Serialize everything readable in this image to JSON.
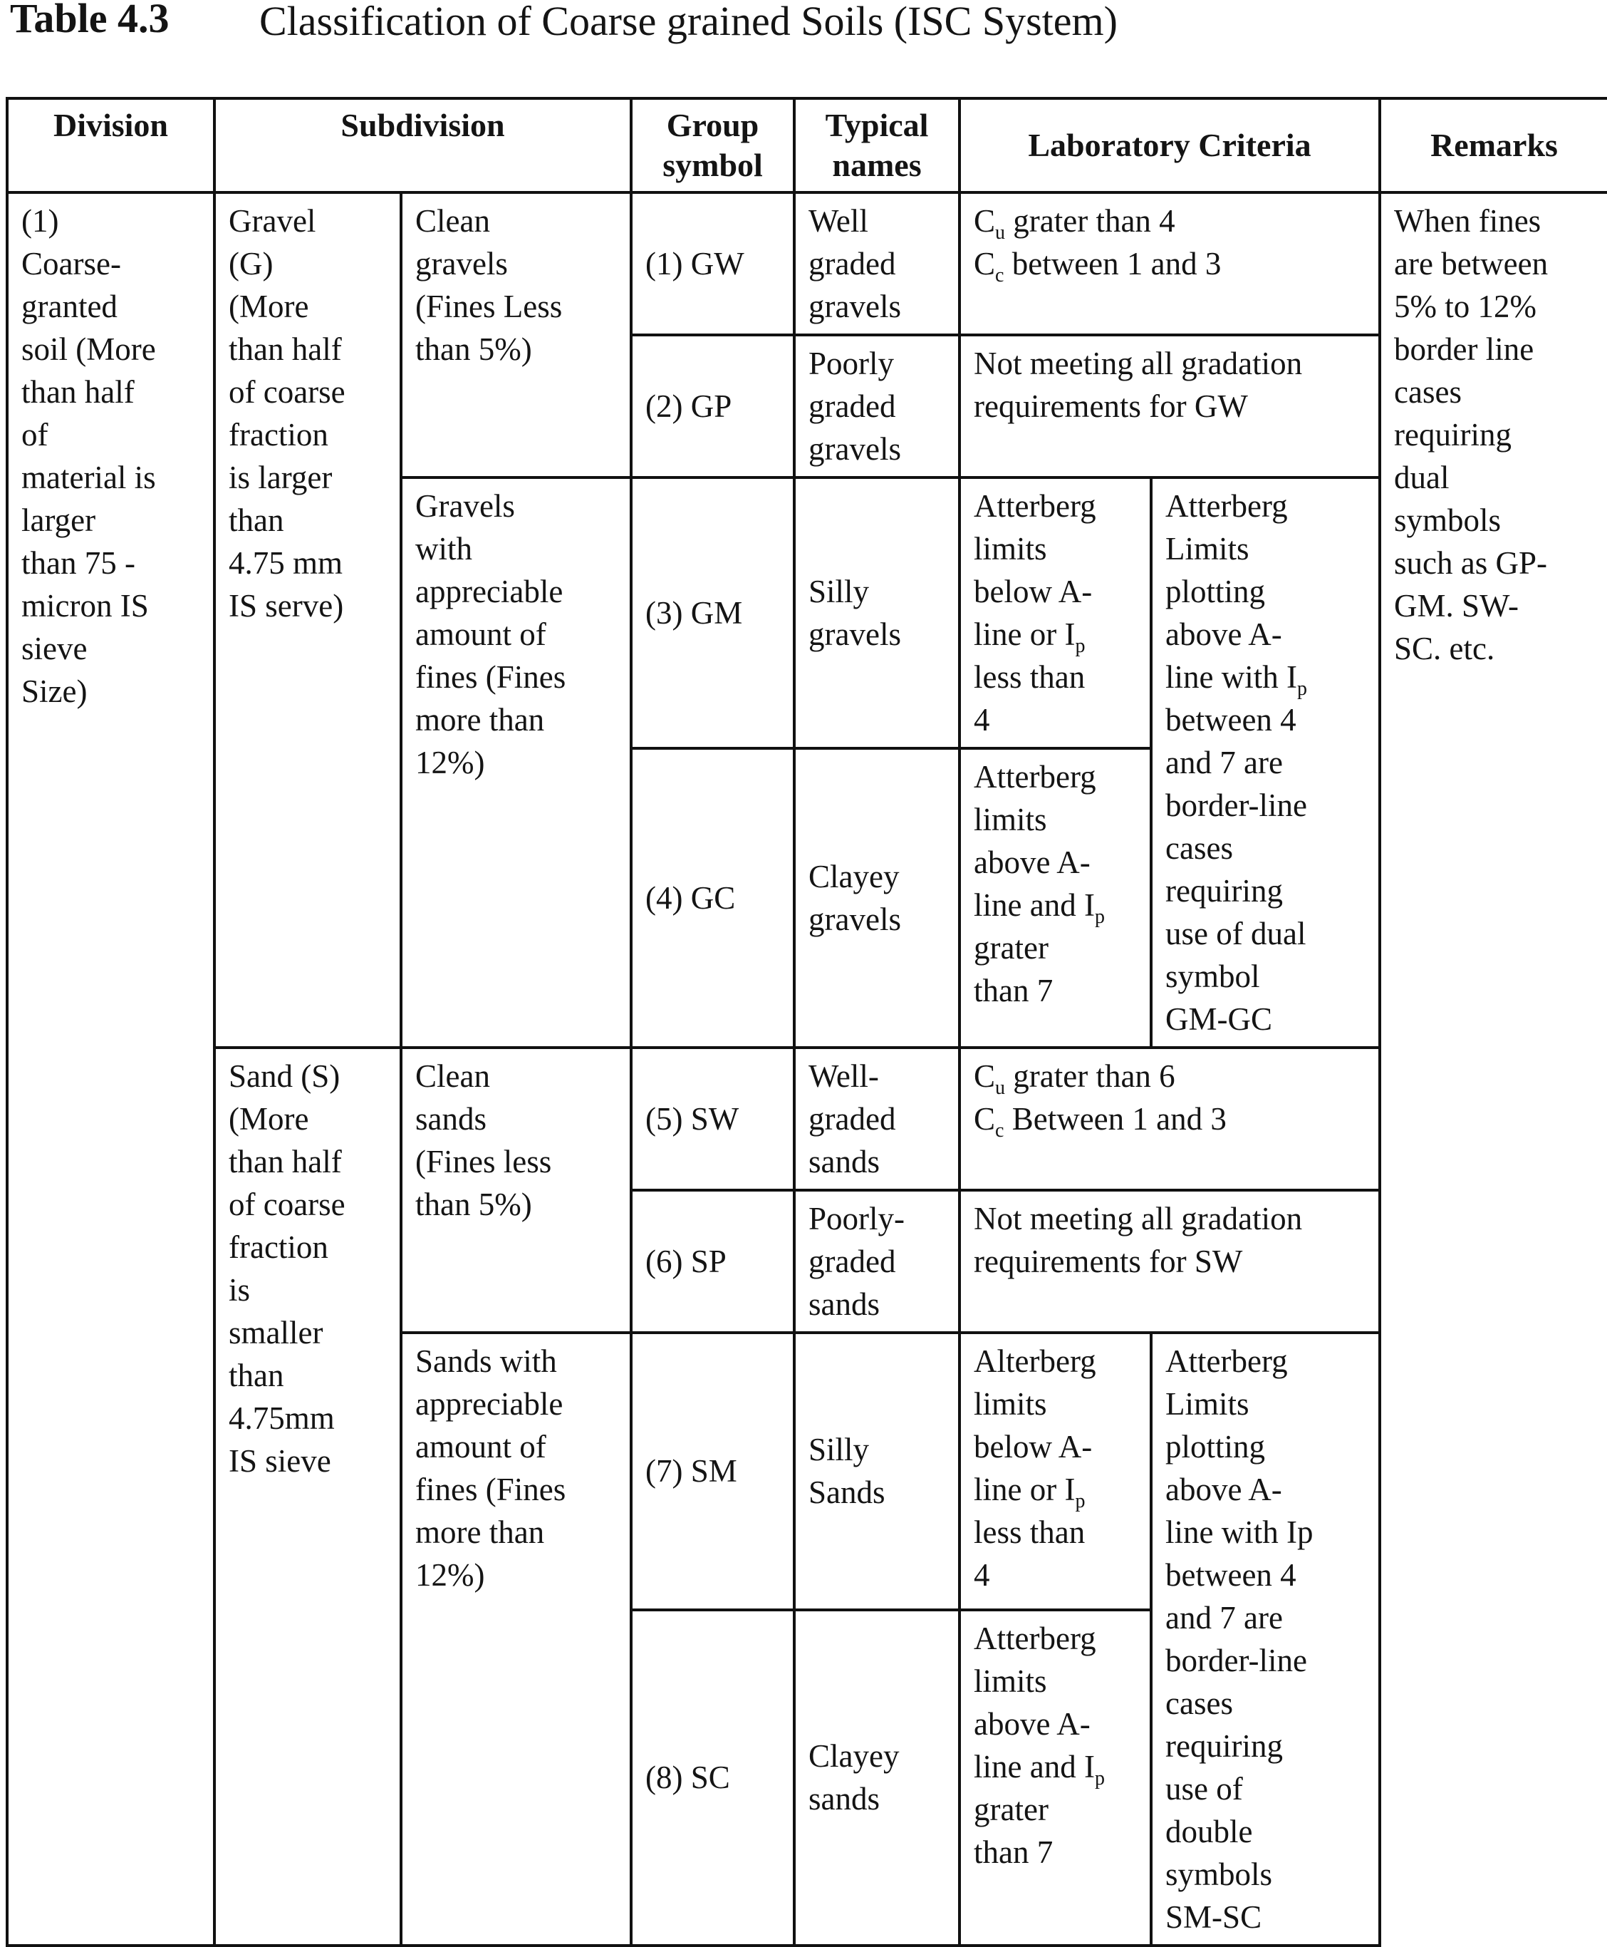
{
  "caption": {
    "number": "Table 4.3",
    "title": "Classification of Coarse grained Soils (ISC System)"
  },
  "headers": {
    "division": "Division",
    "subdivision": "Subdivision",
    "group_symbol": "Group\nsymbol",
    "typical_names": "Typical\nnames",
    "lab_criteria": "Laboratory Criteria",
    "remarks": "Remarks"
  },
  "division": "(1)\nCoarse-\ngranted\nsoil (More\nthan half\nof\nmaterial is\nlarger\nthan 75 -\nmicron IS\nsieve\nSize)",
  "gravel": {
    "subdivision": "Gravel\n(G)\n(More\nthan half\nof coarse\nfraction\nis larger\nthan\n4.75 mm\nIS serve)",
    "clean": "Clean\ngravels\n(Fines Less\nthan 5%)",
    "fines": "Gravels\nwith\nappreciable\namount of\nfines (Fines\nmore than\n12%)"
  },
  "sand": {
    "subdivision": "Sand (S)\n(More\nthan half\nof coarse\nfraction\nis\nsmaller\nthan\n4.75mm\nIS sieve",
    "clean": "Clean\nsands\n(Fines less\nthan 5%)",
    "fines": "Sands with\nappreciable\namount of\nfines (Fines\nmore than\n12%)"
  },
  "rows": {
    "gw": {
      "symbol": "(1) GW",
      "name": "Well\ngraded\ngravels",
      "crit1": {
        "pre": "C",
        "sub": "u",
        "post": " grater than 4"
      },
      "crit2": {
        "pre": "C",
        "sub": "c",
        "post": " between 1 and 3"
      }
    },
    "gp": {
      "symbol": "(2) GP",
      "name": "Poorly\ngraded\ngravels",
      "crit": "Not meeting all gradation\nrequirements for GW"
    },
    "gm": {
      "symbol": "(3) GM",
      "name": "Silly\ngravels",
      "crit": {
        "pre": "Atterberg\nlimits\nbelow A-\nline or I",
        "sub": "p",
        "post": "\nless than\n4"
      },
      "dual": {
        "pre": "Atterberg\nLimits\nplotting\nabove A-\nline with I",
        "sub": "p",
        "post": "\nbetween 4\nand 7 are\nborder-line\ncases\nrequiring\nuse of dual\nsymbol\nGM-GC"
      }
    },
    "gc": {
      "symbol": "(4) GC",
      "name": "Clayey\ngravels",
      "crit": {
        "pre": "Atterberg\nlimits\nabove A-\nline and I",
        "sub": "p",
        "post": "\ngrater\nthan 7"
      }
    },
    "sw": {
      "symbol": "(5) SW",
      "name": "Well-\ngraded\nsands",
      "crit1": {
        "pre": "C",
        "sub": "u",
        "post": " grater than 6"
      },
      "crit2": {
        "pre": "C",
        "sub": "c",
        "post": " Between 1 and 3"
      }
    },
    "sp": {
      "symbol": "(6) SP",
      "name": "Poorly-\ngraded\nsands",
      "crit": "Not meeting all gradation\nrequirements for SW"
    },
    "sm": {
      "symbol": "(7) SM",
      "name": "Silly\nSands",
      "crit": {
        "pre": "Alterberg\nlimits\nbelow A-\nline or I",
        "sub": "p",
        "post": "\nless than\n4"
      },
      "dual": "Atterberg\nLimits\nplotting\nabove A-\nline with Ip\nbetween 4\nand 7 are\nborder-line\ncases\nrequiring\nuse of\ndouble\nsymbols\nSM-SC"
    },
    "sc": {
      "symbol": "(8) SC",
      "name": "Clayey\nsands",
      "crit": {
        "pre": "Atterberg\nlimits\nabove A-\nline and I",
        "sub": "p",
        "post": "\ngrater\nthan 7"
      }
    }
  },
  "remarks": "When fines\nare between\n5% to 12%\nborder line\ncases\nrequiring\ndual\nsymbols\nsuch as GP-\nGM. SW-\nSC. etc."
}
